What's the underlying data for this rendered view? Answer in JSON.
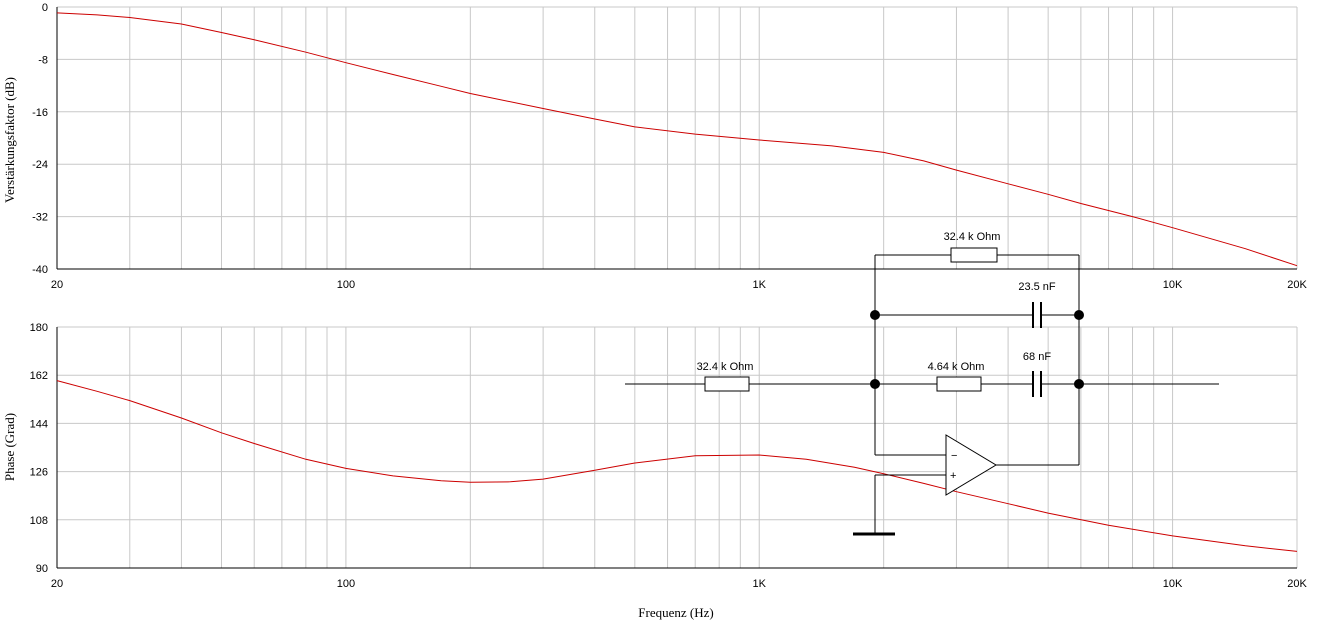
{
  "chart_data": [
    {
      "type": "line",
      "ylabel": "Verstärkungsfaktor (dB)",
      "xlabel": "",
      "x_scale": "log",
      "xlim": [
        20,
        20000
      ],
      "ylim": [
        -40,
        0
      ],
      "grid": true,
      "xticks": [
        "20",
        "100",
        "1K",
        "10K",
        "20K"
      ],
      "yticks": [
        "0",
        "-8",
        "-16",
        "-24",
        "-32",
        "-40"
      ],
      "line_color": "#cc0000",
      "series": [
        {
          "x": [
            20,
            25,
            30,
            40,
            50,
            60,
            80,
            100,
            130,
            170,
            200,
            300,
            400,
            500,
            700,
            1000,
            1500,
            2000,
            2500,
            3000,
            4000,
            5000,
            6000,
            8000,
            10000,
            15000,
            20000
          ],
          "y": [
            -0.9,
            -1.2,
            -1.6,
            -2.6,
            -3.9,
            -5.0,
            -6.9,
            -8.5,
            -10.3,
            -12.1,
            -13.2,
            -15.5,
            -17.1,
            -18.3,
            -19.4,
            -20.3,
            -21.2,
            -22.2,
            -23.5,
            -24.9,
            -27.0,
            -28.6,
            -30.0,
            -32.0,
            -33.7,
            -36.9,
            -39.5
          ]
        }
      ]
    },
    {
      "type": "line",
      "ylabel": "Phase (Grad)",
      "xlabel": "Frequenz (Hz)",
      "x_scale": "log",
      "xlim": [
        20,
        20000
      ],
      "ylim": [
        90,
        180
      ],
      "grid": true,
      "xticks": [
        "20",
        "100",
        "1K",
        "10K",
        "20K"
      ],
      "yticks": [
        "180",
        "162",
        "144",
        "126",
        "108",
        "90"
      ],
      "line_color": "#cc0000",
      "series": [
        {
          "x": [
            20,
            25,
            30,
            40,
            50,
            60,
            80,
            100,
            130,
            170,
            200,
            250,
            300,
            400,
            500,
            700,
            1000,
            1300,
            1700,
            2000,
            2500,
            3000,
            4000,
            5000,
            7000,
            10000,
            15000,
            20000
          ],
          "y": [
            160.0,
            156.0,
            152.5,
            146.0,
            140.5,
            136.5,
            130.6,
            127.2,
            124.4,
            122.6,
            122.0,
            122.2,
            123.2,
            126.5,
            129.2,
            131.9,
            132.2,
            130.6,
            127.6,
            125.2,
            121.6,
            118.5,
            114.0,
            110.5,
            106.0,
            102.0,
            98.3,
            96.2
          ]
        }
      ]
    }
  ],
  "circuit": {
    "r_top_label": "32.4 k Ohm",
    "c_top_label": "23.5 nF",
    "r_in_label": "32.4 k Ohm",
    "r_mid_label": "4.64 k Ohm",
    "c_mid_label": "68 nF",
    "minus_sign": "−",
    "plus_sign": "+"
  },
  "colors": {
    "grid": "#c8c8c8",
    "curve": "#cc0000",
    "axis": "#000000"
  }
}
